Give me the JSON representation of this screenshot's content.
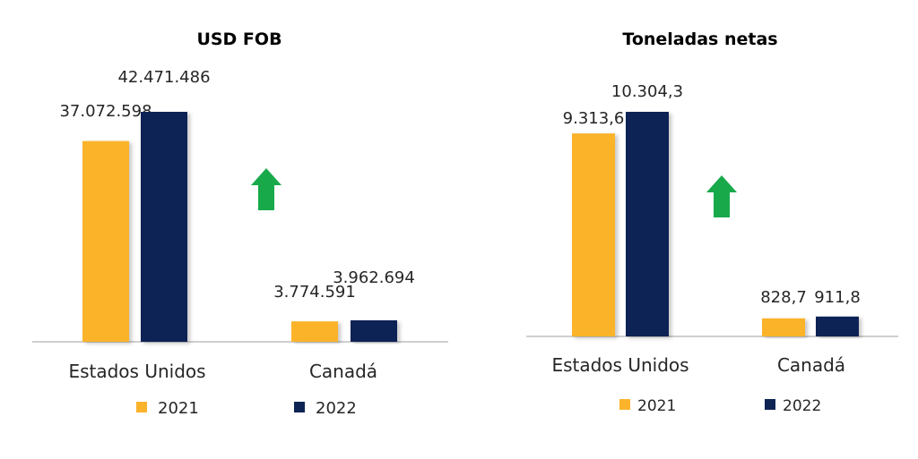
{
  "colors": {
    "y2021": "#FBB32B",
    "y2022": "#0D2455",
    "arrow": "#18A94B",
    "axis": "#BFBFBF",
    "text": "#262626"
  },
  "chart_data": [
    {
      "type": "bar",
      "title": "USD FOB",
      "categories": [
        "Estados Unidos",
        "Canadá"
      ],
      "series": [
        {
          "name": "2021",
          "values": [
            37072598,
            3774591
          ],
          "labels": [
            "37.072.598",
            "3.774.591"
          ]
        },
        {
          "name": "2022",
          "values": [
            42471486,
            3962694
          ],
          "labels": [
            "42.471.486",
            "3.962.694"
          ]
        }
      ],
      "ylim": [
        0,
        42471486
      ],
      "grid": false,
      "legend": "bottom",
      "annotation": "green up-arrow icon"
    },
    {
      "type": "bar",
      "title": "Toneladas netas",
      "categories": [
        "Estados Unidos",
        "Canadá"
      ],
      "series": [
        {
          "name": "2021",
          "values": [
            9313.6,
            828.7
          ],
          "labels": [
            "9.313,6",
            "828,7"
          ]
        },
        {
          "name": "2022",
          "values": [
            10304.3,
            911.8
          ],
          "labels": [
            "10.304,3",
            "911,8"
          ]
        }
      ],
      "ylim": [
        0,
        10304.3
      ],
      "grid": false,
      "legend": "bottom",
      "annotation": "green up-arrow icon"
    }
  ]
}
